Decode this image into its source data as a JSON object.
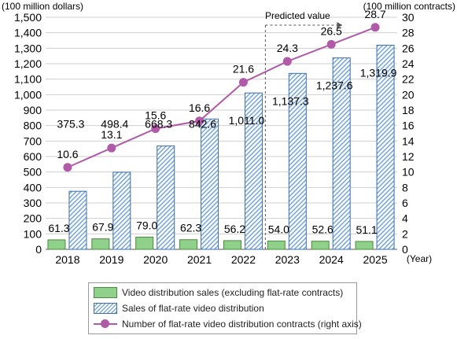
{
  "chart_data": {
    "type": "bar",
    "categories": [
      "2018",
      "2019",
      "2020",
      "2021",
      "2022",
      "2023",
      "2024",
      "2025"
    ],
    "xunit": "(Year)",
    "y_left_label": "(100 million dollars)",
    "y_right_label": "(100 million contracts)",
    "ylim_left": [
      0,
      1500
    ],
    "ylim_right": [
      0,
      30
    ],
    "left_ticks": [
      "0",
      "100",
      "200",
      "300",
      "400",
      "500",
      "600",
      "700",
      "800",
      "900",
      "1,000",
      "1,100",
      "1,200",
      "1,300",
      "1,400",
      "1,500"
    ],
    "right_ticks": [
      "0",
      "2",
      "4",
      "6",
      "8",
      "10",
      "12",
      "14",
      "16",
      "18",
      "20",
      "22",
      "24",
      "26",
      "28",
      "30"
    ],
    "annotation": "Predicted value",
    "predicted_from": "2023",
    "series": [
      {
        "name": "Video distribution sales (excluding flat-rate contracts)",
        "kind": "bar",
        "axis": "left",
        "color": "#8fd18a",
        "values": [
          61.3,
          67.9,
          79.0,
          62.3,
          56.2,
          54.0,
          52.6,
          51.1
        ],
        "labels": [
          "61.3",
          "67.9",
          "79.0",
          "62.3",
          "56.2",
          "54.0",
          "52.6",
          "51.1"
        ]
      },
      {
        "name": "Sales of flat-rate video distribution",
        "kind": "bar",
        "axis": "left",
        "color": "#7aa8dc",
        "values": [
          375.3,
          498.4,
          668.3,
          842.6,
          1011.0,
          1137.3,
          1237.6,
          1319.9
        ],
        "labels": [
          "375.3",
          "498.4",
          "668.3",
          "842.6",
          "1,011.0",
          "1,137.3",
          "1,237.6",
          "1,319.9"
        ]
      },
      {
        "name": "Number of flat-rate video distribution contracts (right axis)",
        "kind": "line",
        "axis": "right",
        "color": "#b05aa8",
        "values": [
          10.6,
          13.1,
          15.6,
          16.6,
          21.6,
          24.3,
          26.5,
          28.7
        ],
        "labels": [
          "10.6",
          "13.1",
          "15.6",
          "16.6",
          "21.6",
          "24.3",
          "26.5",
          "28.7"
        ]
      }
    ]
  }
}
